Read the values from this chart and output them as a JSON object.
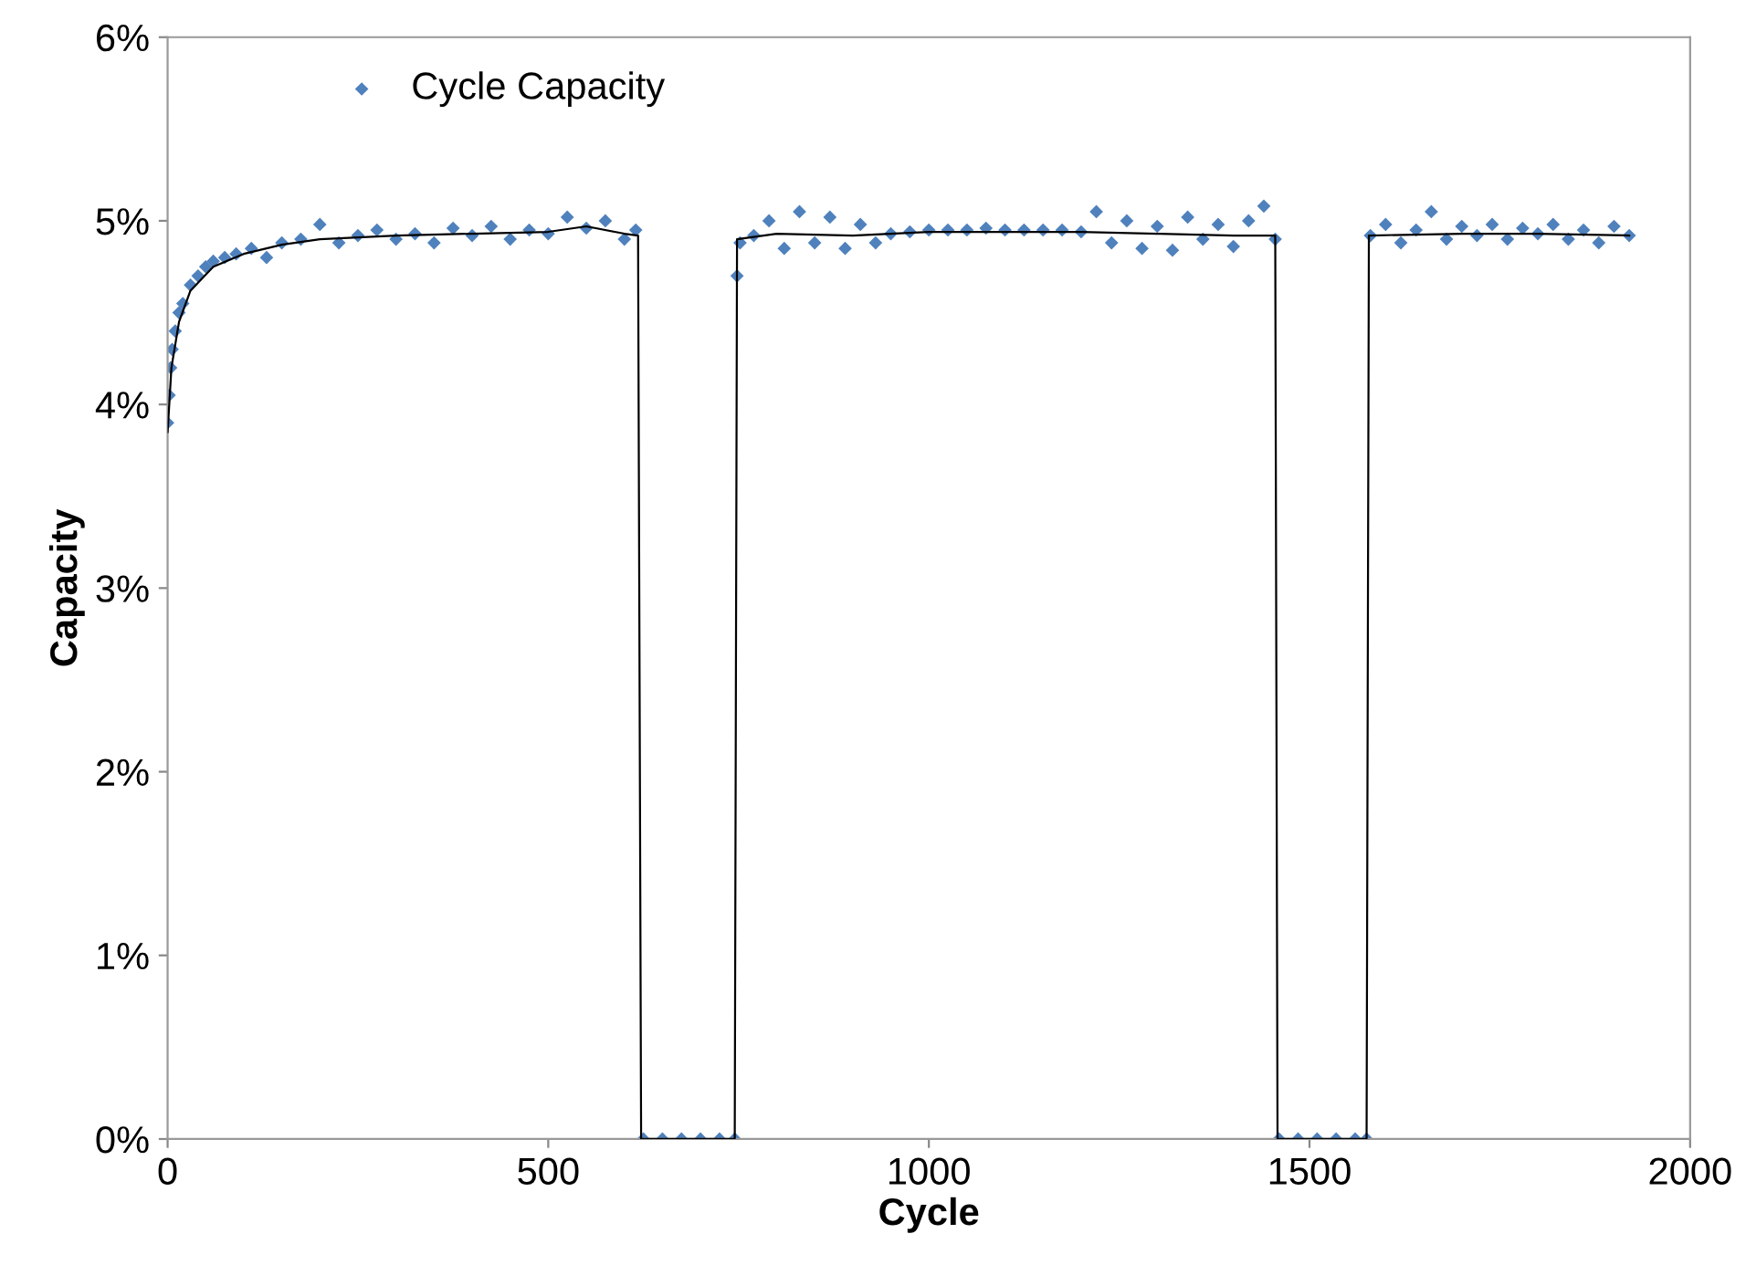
{
  "chart_data": {
    "type": "scatter",
    "xlabel": "Cycle",
    "ylabel": "Capacity",
    "xlim": [
      0,
      2000
    ],
    "xticks": [
      0,
      500,
      1000,
      1500,
      2000
    ],
    "ylim": [
      0,
      6
    ],
    "yticks": [
      {
        "value": 0,
        "label": "0%"
      },
      {
        "value": 1,
        "label": "1%"
      },
      {
        "value": 2,
        "label": "2%"
      },
      {
        "value": 3,
        "label": "3%"
      },
      {
        "value": 4,
        "label": "4%"
      },
      {
        "value": 5,
        "label": "5%"
      },
      {
        "value": 6,
        "label": "6%"
      }
    ],
    "grid": false,
    "legend": "top left",
    "marker": "diamond",
    "series": [
      {
        "name": "Cycle Capacity",
        "color": "#4f81bd",
        "x": [
          0,
          2,
          4,
          6,
          10,
          15,
          20,
          30,
          40,
          50,
          60,
          75,
          90,
          110,
          130,
          150,
          175,
          200,
          225,
          250,
          275,
          300,
          325,
          350,
          375,
          400,
          425,
          450,
          475,
          500,
          525,
          550,
          575,
          600,
          615,
          625,
          650,
          675,
          700,
          725,
          745,
          748,
          752,
          770,
          790,
          810,
          830,
          850,
          870,
          890,
          910,
          930,
          950,
          975,
          1000,
          1025,
          1050,
          1075,
          1100,
          1125,
          1150,
          1175,
          1200,
          1220,
          1240,
          1260,
          1280,
          1300,
          1320,
          1340,
          1360,
          1380,
          1400,
          1420,
          1440,
          1455,
          1460,
          1485,
          1510,
          1535,
          1560,
          1575,
          1580,
          1600,
          1620,
          1640,
          1660,
          1680,
          1700,
          1720,
          1740,
          1760,
          1780,
          1800,
          1820,
          1840,
          1860,
          1880,
          1900,
          1920
        ],
        "values": [
          3.9,
          4.05,
          4.2,
          4.3,
          4.4,
          4.5,
          4.55,
          4.65,
          4.7,
          4.75,
          4.78,
          4.8,
          4.82,
          4.85,
          4.8,
          4.88,
          4.9,
          4.98,
          4.88,
          4.92,
          4.95,
          4.9,
          4.93,
          4.88,
          4.96,
          4.92,
          4.97,
          4.9,
          4.95,
          4.93,
          5.02,
          4.96,
          5.0,
          4.9,
          4.95,
          0,
          0,
          0,
          0,
          0,
          0,
          4.7,
          4.88,
          4.92,
          5.0,
          4.85,
          5.05,
          4.88,
          5.02,
          4.85,
          4.98,
          4.88,
          4.93,
          4.94,
          4.95,
          4.95,
          4.95,
          4.96,
          4.95,
          4.95,
          4.95,
          4.95,
          4.94,
          5.05,
          4.88,
          5.0,
          4.85,
          4.97,
          4.84,
          5.02,
          4.9,
          4.98,
          4.86,
          5.0,
          5.08,
          4.9,
          0,
          0,
          0,
          0,
          0,
          0,
          4.92,
          4.98,
          4.88,
          4.95,
          5.05,
          4.9,
          4.97,
          4.92,
          4.98,
          4.9,
          4.96,
          4.93,
          4.98,
          4.9,
          4.95,
          4.88,
          4.97,
          4.92
        ]
      },
      {
        "type": "line",
        "color": "#000000",
        "marker": "none",
        "x": [
          0,
          5,
          15,
          30,
          60,
          100,
          150,
          200,
          300,
          400,
          500,
          550,
          600,
          618,
          622,
          745,
          748,
          800,
          900,
          1000,
          1200,
          1300,
          1400,
          1455,
          1458,
          1575,
          1578,
          1700,
          1800,
          1920
        ],
        "values": [
          3.85,
          4.2,
          4.45,
          4.62,
          4.75,
          4.82,
          4.87,
          4.9,
          4.92,
          4.93,
          4.94,
          4.97,
          4.93,
          4.92,
          0,
          0,
          4.9,
          4.93,
          4.92,
          4.94,
          4.94,
          4.93,
          4.92,
          4.92,
          0,
          0,
          4.92,
          4.93,
          4.93,
          4.92
        ]
      }
    ]
  }
}
